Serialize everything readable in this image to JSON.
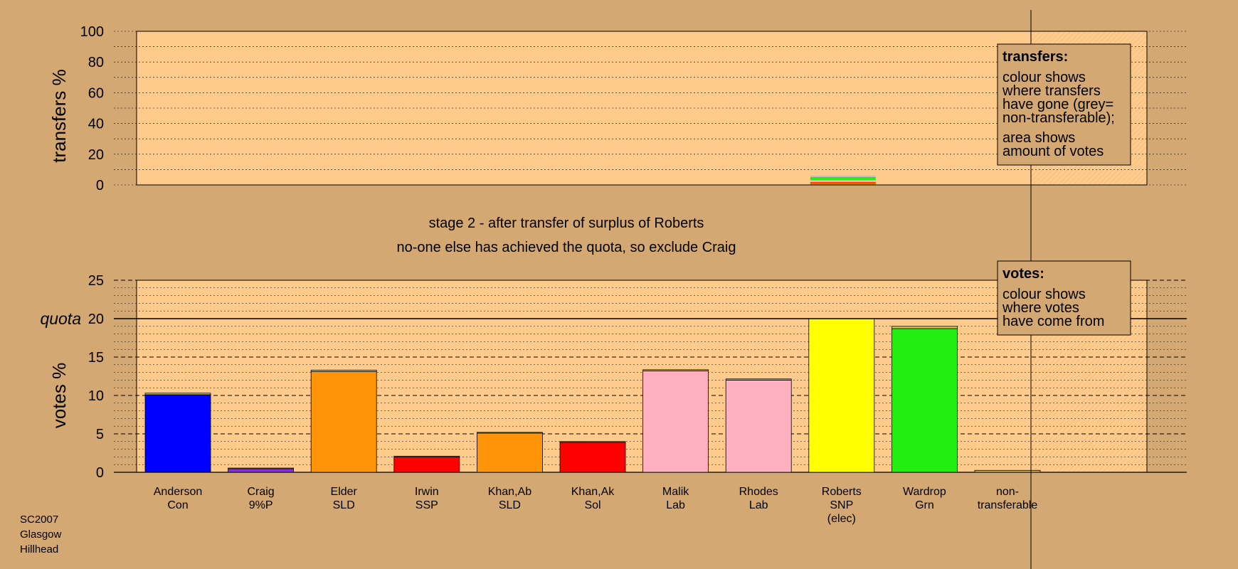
{
  "headings": {
    "stage": "stage 2 - after transfer of surplus of Roberts",
    "note": "no-one else has achieved the quota, so exclude Craig"
  },
  "source": [
    "SC2007",
    "Glasgow",
    "Hillhead"
  ],
  "legends": {
    "transfers": {
      "title": "transfers:",
      "para1": [
        "colour shows",
        "where transfers",
        "have gone (grey=",
        "non-transferable);"
      ],
      "para2": [
        "area shows",
        "amount of votes"
      ]
    },
    "votes": {
      "title": "votes:",
      "para1": [
        "colour shows",
        "where votes",
        "have come from"
      ]
    }
  },
  "colors": {
    "background": "#d4a872",
    "plot": "#fecb8c",
    "Con": "#0000ff",
    "9%P": "#8a2be2",
    "SLD": "#ff9408",
    "SSP": "#ff0000",
    "Sol": "#ff0000",
    "Lab": "#ffb0c0",
    "SNP": "#ffff00",
    "Grn": "#22ee11",
    "non-transferable": "#c0c0c0"
  },
  "chart_data": [
    {
      "type": "bar",
      "name": "transfers",
      "ylabel": "transfers %",
      "ylim": [
        0,
        100
      ],
      "yticks": [
        0,
        20,
        40,
        60,
        80,
        100
      ],
      "grid": true,
      "legend": "top-right",
      "candidate": "Roberts",
      "segments": [
        {
          "to": "Anderson",
          "party": "Con",
          "value": 0.3
        },
        {
          "to": "Craig",
          "party": "9%P",
          "value": 0.1
        },
        {
          "to": "Elder",
          "party": "SLD",
          "value": 0.6
        },
        {
          "to": "Irwin",
          "party": "SSP",
          "value": 0.4
        },
        {
          "to": "Khan,Ab",
          "party": "SLD",
          "value": 0.3
        },
        {
          "to": "Khan,Ak",
          "party": "Sol",
          "value": 0.2
        },
        {
          "to": "Malik",
          "party": "Lab",
          "value": 0.6
        },
        {
          "to": "Rhodes",
          "party": "Lab",
          "value": 0.6
        },
        {
          "to": "Wardrop",
          "party": "Grn",
          "value": 2.0
        },
        {
          "to": "non-transferable",
          "party": "non-transferable",
          "value": 1.0
        }
      ]
    },
    {
      "type": "bar",
      "name": "votes",
      "ylabel": "votes %",
      "ylim": [
        0,
        25
      ],
      "yticks": [
        0,
        5,
        10,
        15,
        20,
        25
      ],
      "quota": 20,
      "quota_label": "quota",
      "grid": true,
      "legend": "top-right",
      "categories": [
        "Anderson Con",
        "Craig 9%P",
        "Elder SLD",
        "Irwin SSP",
        "Khan,Ab SLD",
        "Khan,Ak Sol",
        "Malik Lab",
        "Rhodes Lab",
        "Roberts SNP (elec)",
        "Wardrop Grn",
        "non-transferable"
      ],
      "bars": [
        {
          "label": [
            "Anderson",
            "Con"
          ],
          "party": "Con",
          "base": 10.1,
          "added": 0.2
        },
        {
          "label": [
            "Craig",
            "9%P"
          ],
          "party": "9%P",
          "base": 0.5,
          "added": 0.05
        },
        {
          "label": [
            "Elder",
            "SLD"
          ],
          "party": "SLD",
          "base": 13.1,
          "added": 0.2
        },
        {
          "label": [
            "Irwin",
            "SSP"
          ],
          "party": "SSP",
          "base": 2.0,
          "added": 0.1
        },
        {
          "label": [
            "Khan,Ab",
            "SLD"
          ],
          "party": "SLD",
          "base": 5.1,
          "added": 0.1
        },
        {
          "label": [
            "Khan,Ak",
            "Sol"
          ],
          "party": "Sol",
          "base": 3.9,
          "added": 0.1
        },
        {
          "label": [
            "Malik",
            "Lab"
          ],
          "party": "Lab",
          "base": 13.2,
          "added": 0.15
        },
        {
          "label": [
            "Rhodes",
            "Lab"
          ],
          "party": "Lab",
          "base": 12.0,
          "added": 0.15
        },
        {
          "label": [
            "Roberts",
            "SNP",
            "(elec)"
          ],
          "party": "SNP",
          "base": 20.0,
          "added": 0
        },
        {
          "label": [
            "Wardrop",
            "Grn"
          ],
          "party": "Grn",
          "base": 18.7,
          "added": 0.3
        },
        {
          "label": [
            "non-",
            "transferable"
          ],
          "party": "non-transferable",
          "base": 0,
          "added": 0.25
        }
      ]
    }
  ]
}
